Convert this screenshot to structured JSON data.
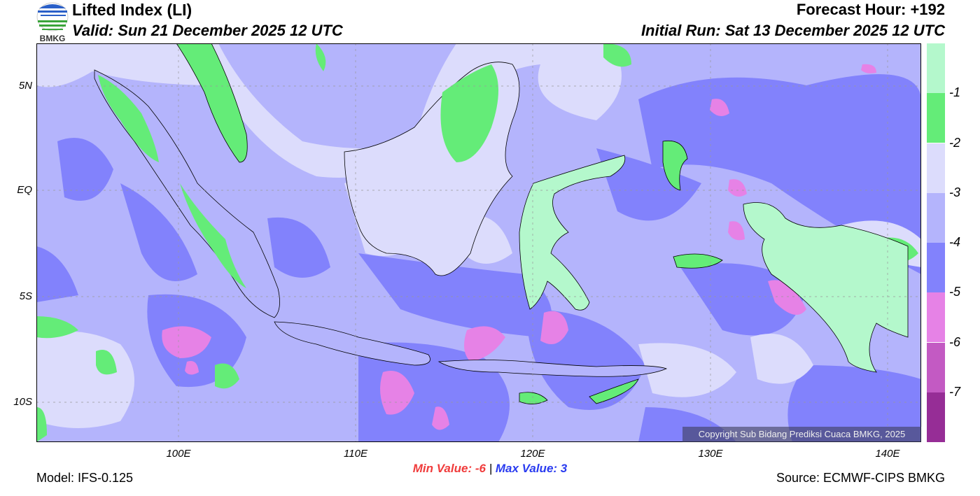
{
  "header": {
    "title": "Lifted Index (LI)",
    "valid": "Valid: Sun 21 December 2025 12 UTC",
    "forecast_hour": "Forecast Hour: +192",
    "initial_run": "Initial Run: Sat 13 December 2025 12 UTC",
    "logo_text": "BMKG"
  },
  "axes": {
    "lat_labels": [
      "5N",
      "EQ",
      "5S",
      "10S"
    ],
    "lon_labels": [
      "100E",
      "110E",
      "120E",
      "130E",
      "140E"
    ]
  },
  "colorbar": {
    "labels": [
      "-1",
      "-2",
      "-3",
      "-4",
      "-5",
      "-6",
      "-7"
    ],
    "colors": [
      "#b4f8cc",
      "#64ec78",
      "#dcdcfc",
      "#b4b4fc",
      "#8282fc",
      "#e682e6",
      "#c35ac3",
      "#962d96"
    ]
  },
  "stats": {
    "min_label": "Min Value:",
    "min_value": "-6",
    "separator": "|",
    "max_label": "Max Value:",
    "max_value": "3"
  },
  "footer": {
    "model": "Model: IFS-0.125",
    "source": "Source: ECMWF-CIPS BMKG",
    "copyright": "Copyright Sub Bidang Prediksi Cuaca BMKG, 2025"
  }
}
